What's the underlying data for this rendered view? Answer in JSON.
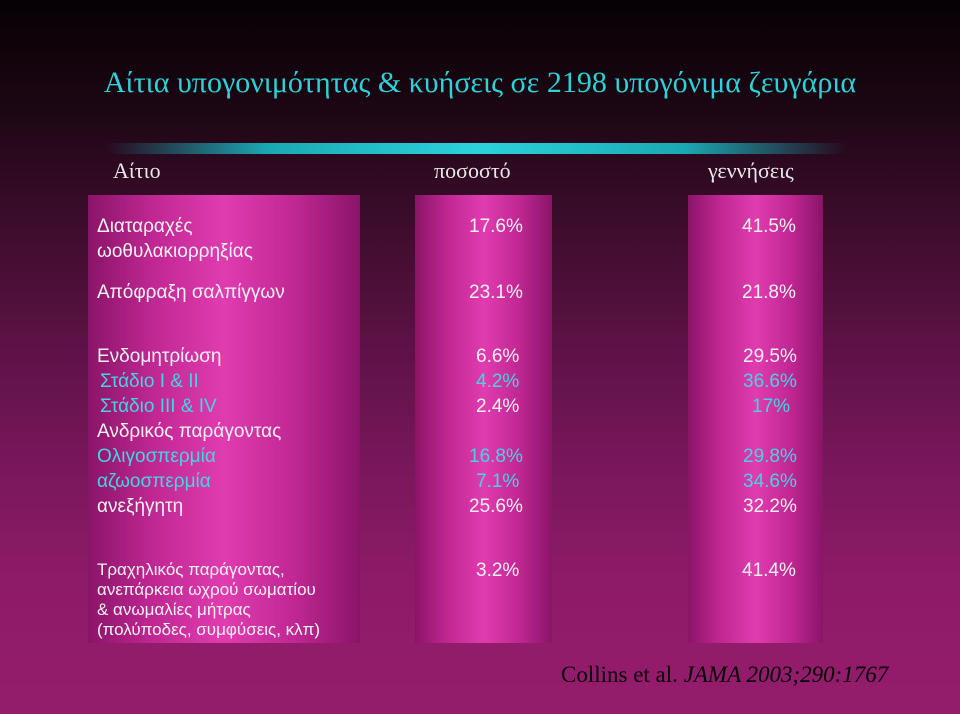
{
  "title": "Αίτια υπογονιμότητας & κυήσεις σε 2198 υπογόνιμα ζευγάρια",
  "headers": {
    "cause": "Αίτιο",
    "percent": "ποσοστό",
    "births": "γεννήσεις"
  },
  "rows": [
    {
      "cause": "Διαταραχές",
      "cause2": "ωοθυλακιορρηξίας",
      "percent": "17.6%",
      "births": "41.5%"
    },
    {
      "cause": "Απόφραξη σαλπίγγων",
      "percent": "23.1%",
      "births": "21.8%"
    },
    {
      "cause": "Ενδομητρίωση",
      "percent": "6.6%",
      "births": "29.5%"
    },
    {
      "cause": "Στάδιο I & II",
      "percent": "4.2%",
      "births": "36.6%"
    },
    {
      "cause": "Στάδιο III & IV",
      "percent": "2.4%",
      "births": "17%"
    },
    {
      "cause": "Ανδρικός παράγοντας"
    },
    {
      "cause": "Ολιγοσπερμία",
      "percent": "16.8%",
      "births": "29.8%"
    },
    {
      "cause": "αζωοσπερμία",
      "percent": "7.1%",
      "births": "34.6%"
    },
    {
      "cause": "ανεξήγητη",
      "percent": "25.6%",
      "births": "32.2%"
    },
    {
      "cause": "Τραχηλικός παράγοντας,",
      "cause2": "ανεπάρκεια ωχρού σωματίου",
      "cause3": "& ανωμαλίες μήτρας",
      "cause4": "(πολύποδες, συμφύσεις, κλπ)",
      "percent": "3.2%",
      "births": "41.4%"
    }
  ],
  "citation": "Collins et al. JAMA 2003;290:1767",
  "colors": {
    "title": "#2fd0d8",
    "accent_text": "#45d4e6",
    "band": "#e03cb0",
    "text": "#f2f2f2"
  }
}
